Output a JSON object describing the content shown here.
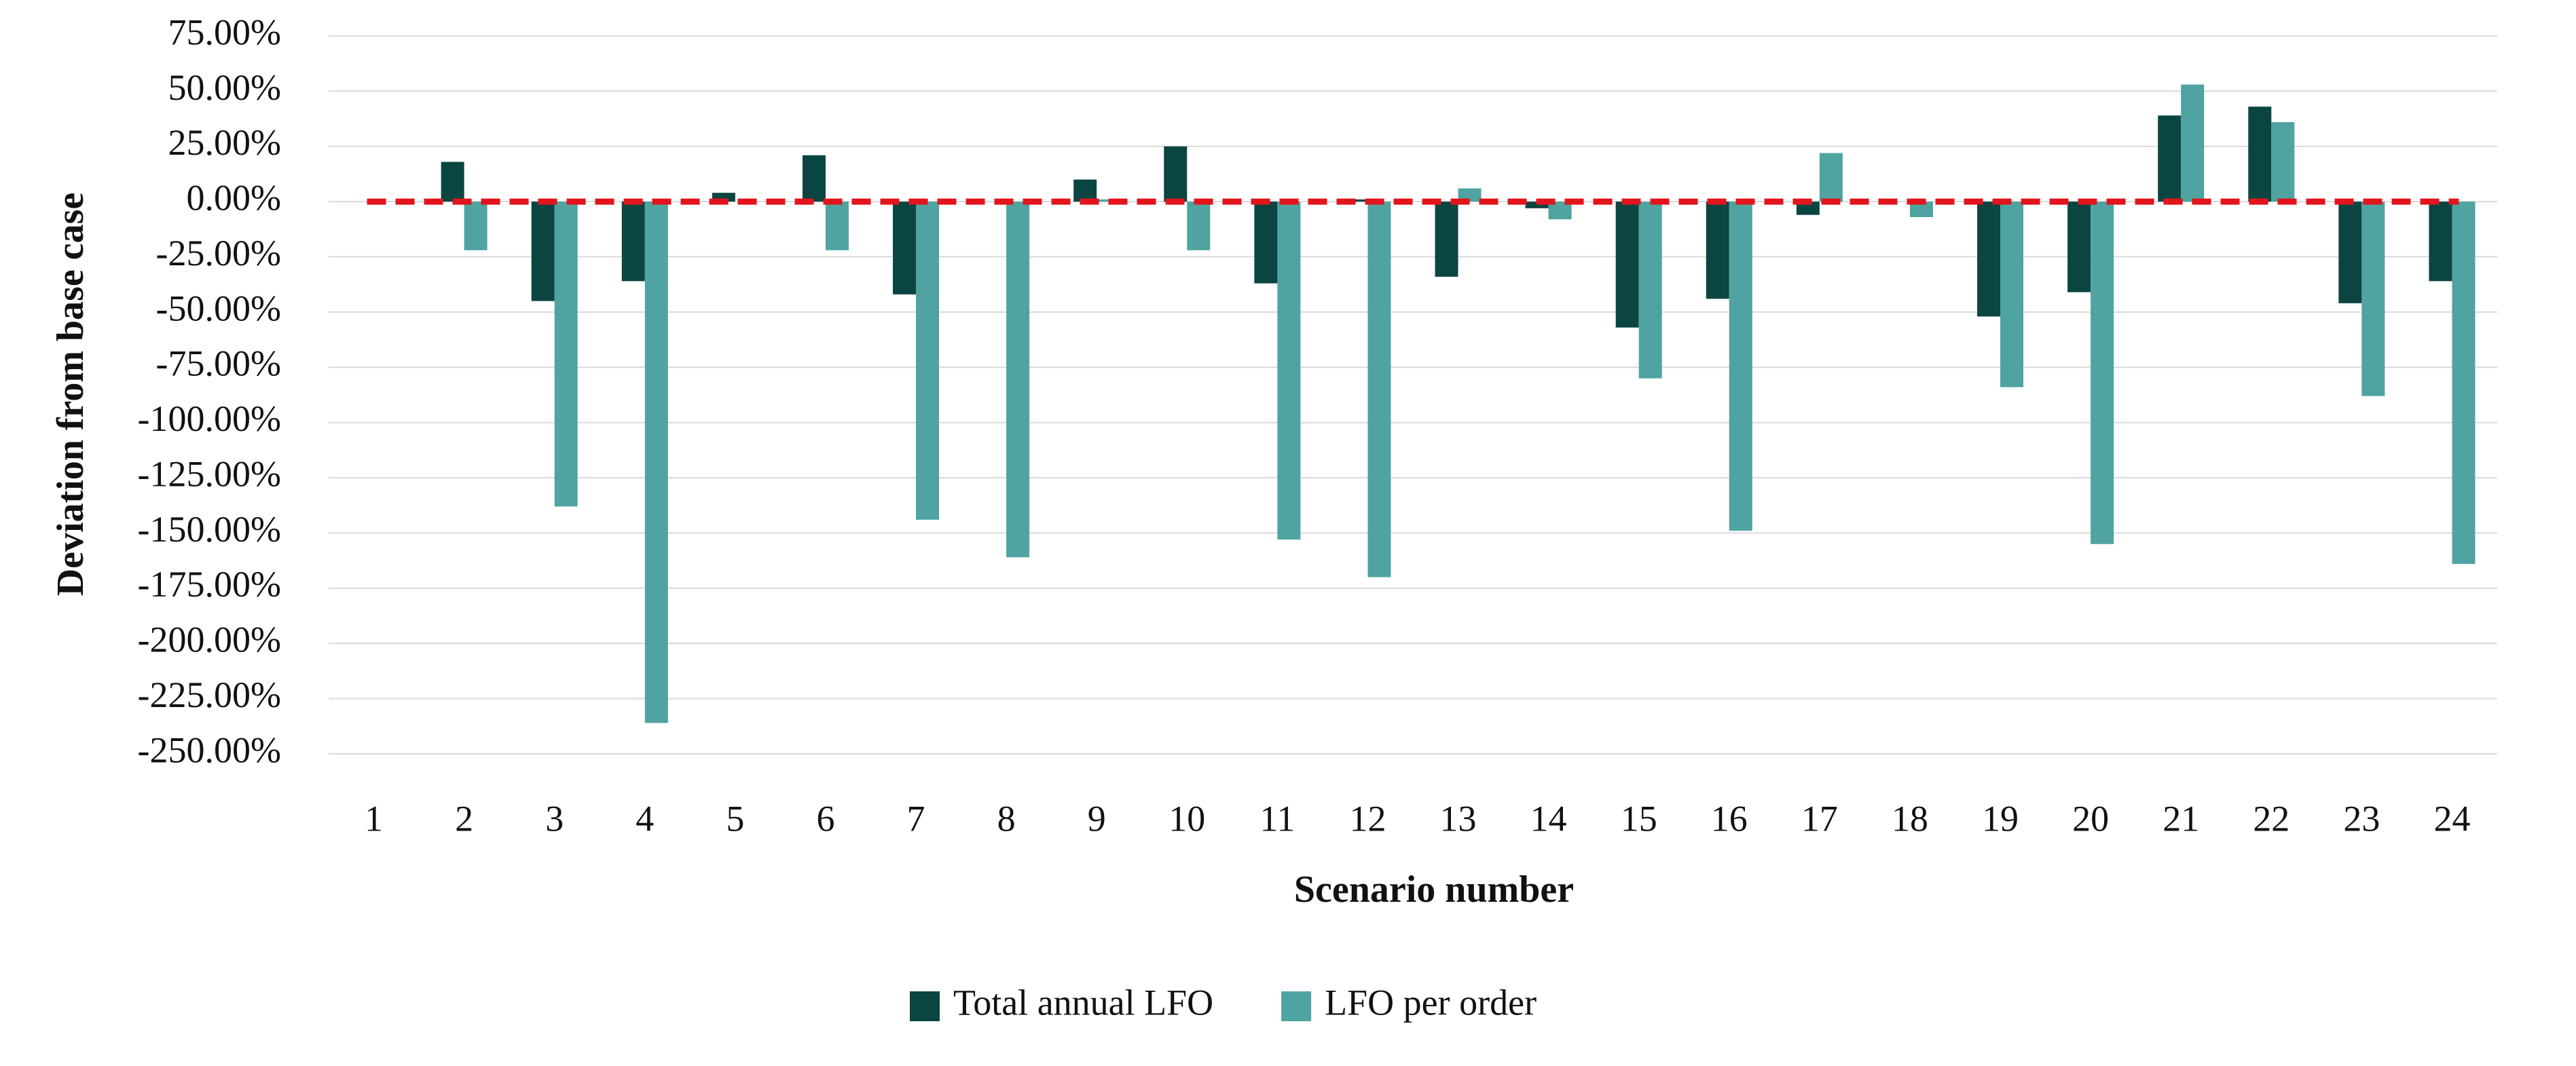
{
  "chart_data": {
    "type": "bar",
    "x_label": "Scenario number",
    "y_label": "Deviation from base case",
    "categories": [
      "1",
      "2",
      "3",
      "4",
      "5",
      "6",
      "7",
      "8",
      "9",
      "10",
      "11",
      "12",
      "13",
      "14",
      "15",
      "16",
      "17",
      "18",
      "19",
      "20",
      "21",
      "22",
      "23",
      "24"
    ],
    "series": [
      {
        "name": "Total annual LFO",
        "color": "#0b4542",
        "values": [
          0,
          18,
          -45,
          -36,
          4,
          21,
          -42,
          0,
          10,
          25,
          -37,
          1,
          -34,
          -3,
          -57,
          -44,
          -6,
          0,
          -52,
          -41,
          39,
          43,
          -46,
          -36
        ]
      },
      {
        "name": "LFO per order",
        "color": "#4fa3a0",
        "values": [
          0,
          -22,
          -138,
          -236,
          0,
          -22,
          -144,
          -161,
          1,
          -22,
          -153,
          -170,
          6,
          -8,
          -80,
          -149,
          22,
          -7,
          -84,
          -155,
          53,
          36,
          -88,
          -164
        ]
      }
    ],
    "ylim": [
      -250,
      75
    ],
    "yticks": [
      {
        "value": 75,
        "label": "75.00%"
      },
      {
        "value": 50,
        "label": "50.00%"
      },
      {
        "value": 25,
        "label": "25.00%"
      },
      {
        "value": 0,
        "label": "0.00%"
      },
      {
        "value": -25,
        "label": "-25.00%"
      },
      {
        "value": -50,
        "label": "-50.00%"
      },
      {
        "value": -75,
        "label": "-75.00%"
      },
      {
        "value": -100,
        "label": "-100.00%"
      },
      {
        "value": -125,
        "label": "-125.00%"
      },
      {
        "value": -150,
        "label": "-150.00%"
      },
      {
        "value": -175,
        "label": "-175.00%"
      },
      {
        "value": -200,
        "label": "-200.00%"
      },
      {
        "value": -225,
        "label": "-225.00%"
      },
      {
        "value": -250,
        "label": "-250.00%"
      }
    ],
    "grid": true,
    "baseline_color": "#e3141b",
    "legend": "bottom"
  }
}
